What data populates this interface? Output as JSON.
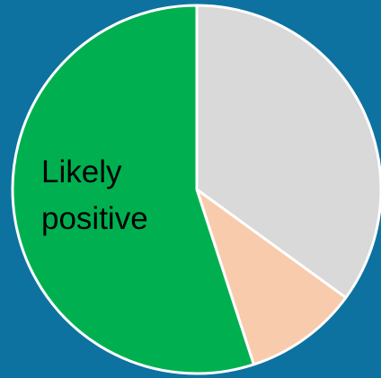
{
  "chart_data": {
    "type": "pie",
    "categories": [
      null,
      null,
      "Likely positive"
    ],
    "values": [
      35,
      10,
      55
    ],
    "colors": [
      "#d9d9d9",
      "#f8cbad",
      "#00b050"
    ],
    "background": "#0e72a0"
  }
}
